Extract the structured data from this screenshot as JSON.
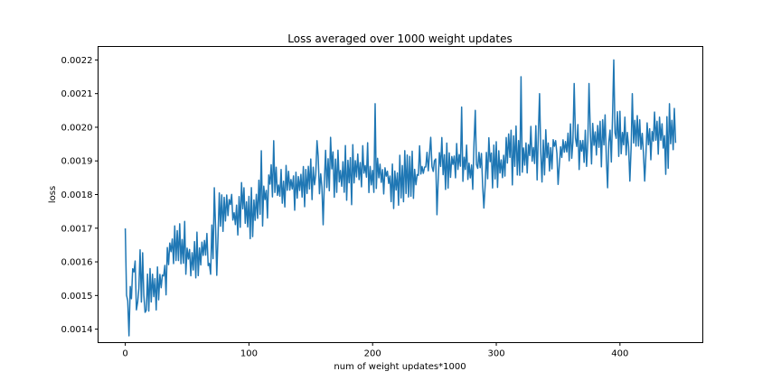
{
  "chart_data": {
    "type": "line",
    "title": "Loss averaged over 1000 weight updates",
    "xlabel": "num of weight updates*1000",
    "ylabel": "loss",
    "xlim": [
      -22,
      467
    ],
    "ylim": [
      0.00136,
      0.00224
    ],
    "xticks": [
      0,
      100,
      200,
      300,
      400
    ],
    "yticks": [
      0.0014,
      0.0015,
      0.0016,
      0.0017,
      0.0018,
      0.0019,
      0.002,
      0.0021,
      0.0022
    ],
    "ytick_labels": [
      "0.0014",
      "0.0015",
      "0.0016",
      "0.0017",
      "0.0018",
      "0.0019",
      "0.0020",
      "0.0021",
      "0.0022"
    ],
    "grid": false,
    "line_color": "#1f77b4",
    "series": [
      {
        "anchors": [
          [
            0,
            0.00168
          ],
          [
            2,
            0.0015
          ],
          [
            3,
            0.00138
          ],
          [
            5,
            0.00155
          ],
          [
            7,
            0.00158
          ],
          [
            9,
            0.0015
          ],
          [
            12,
            0.00158
          ],
          [
            15,
            0.00152
          ],
          [
            18,
            0.0015
          ],
          [
            22,
            0.00155
          ],
          [
            28,
            0.00153
          ],
          [
            33,
            0.00158
          ],
          [
            38,
            0.00166
          ],
          [
            43,
            0.00163
          ],
          [
            48,
            0.00162
          ],
          [
            53,
            0.00163
          ],
          [
            58,
            0.00162
          ],
          [
            63,
            0.00164
          ],
          [
            68,
            0.0016
          ],
          [
            73,
            0.00173
          ],
          [
            78,
            0.00174
          ],
          [
            85,
            0.00176
          ],
          [
            90,
            0.00172
          ],
          [
            95,
            0.00175
          ],
          [
            100,
            0.00174
          ],
          [
            105,
            0.00175
          ],
          [
            110,
            0.00178
          ],
          [
            115,
            0.00181
          ],
          [
            120,
            0.00183
          ],
          [
            130,
            0.00183
          ],
          [
            140,
            0.00182
          ],
          [
            150,
            0.00184
          ],
          [
            160,
            0.00185
          ],
          [
            170,
            0.00188
          ],
          [
            180,
            0.00186
          ],
          [
            190,
            0.00187
          ],
          [
            200,
            0.00187
          ],
          [
            210,
            0.00186
          ],
          [
            220,
            0.00184
          ],
          [
            230,
            0.00185
          ],
          [
            240,
            0.00187
          ],
          [
            250,
            0.0019
          ],
          [
            260,
            0.00188
          ],
          [
            270,
            0.00189
          ],
          [
            280,
            0.00188
          ],
          [
            290,
            0.00189
          ],
          [
            300,
            0.0019
          ],
          [
            310,
            0.00191
          ],
          [
            320,
            0.00192
          ],
          [
            330,
            0.00193
          ],
          [
            340,
            0.00192
          ],
          [
            350,
            0.00194
          ],
          [
            360,
            0.00195
          ],
          [
            370,
            0.00194
          ],
          [
            380,
            0.00195
          ],
          [
            390,
            0.00197
          ],
          [
            400,
            0.00197
          ],
          [
            410,
            0.00196
          ],
          [
            420,
            0.00197
          ],
          [
            430,
            0.00198
          ],
          [
            440,
            0.00196
          ],
          [
            445,
            0.002
          ]
        ],
        "noise_amplitude": 9e-05,
        "x_step": 1,
        "spikes": [
          [
            3,
            0.00138
          ],
          [
            10,
            0.00148
          ],
          [
            16,
            0.00145
          ],
          [
            48,
            0.00172
          ],
          [
            72,
            0.00182
          ],
          [
            74,
            0.00156
          ],
          [
            110,
            0.00193
          ],
          [
            120,
            0.00196
          ],
          [
            155,
            0.00196
          ],
          [
            160,
            0.00171
          ],
          [
            166,
            0.00197
          ],
          [
            183,
            0.00177
          ],
          [
            202,
            0.00207
          ],
          [
            247,
            0.00197
          ],
          [
            252,
            0.00174
          ],
          [
            272,
            0.00206
          ],
          [
            283,
            0.00205
          ],
          [
            290,
            0.00176
          ],
          [
            302,
            0.00193
          ],
          [
            320,
            0.00215
          ],
          [
            335,
            0.0021
          ],
          [
            350,
            0.00183
          ],
          [
            363,
            0.00213
          ],
          [
            375,
            0.00213
          ],
          [
            390,
            0.00182
          ],
          [
            395,
            0.0022
          ],
          [
            408,
            0.00184
          ],
          [
            410,
            0.0021
          ],
          [
            420,
            0.00184
          ],
          [
            432,
            0.00203
          ],
          [
            437,
            0.00186
          ],
          [
            440,
            0.00207
          ],
          [
            446,
            0.00206
          ]
        ]
      }
    ]
  }
}
